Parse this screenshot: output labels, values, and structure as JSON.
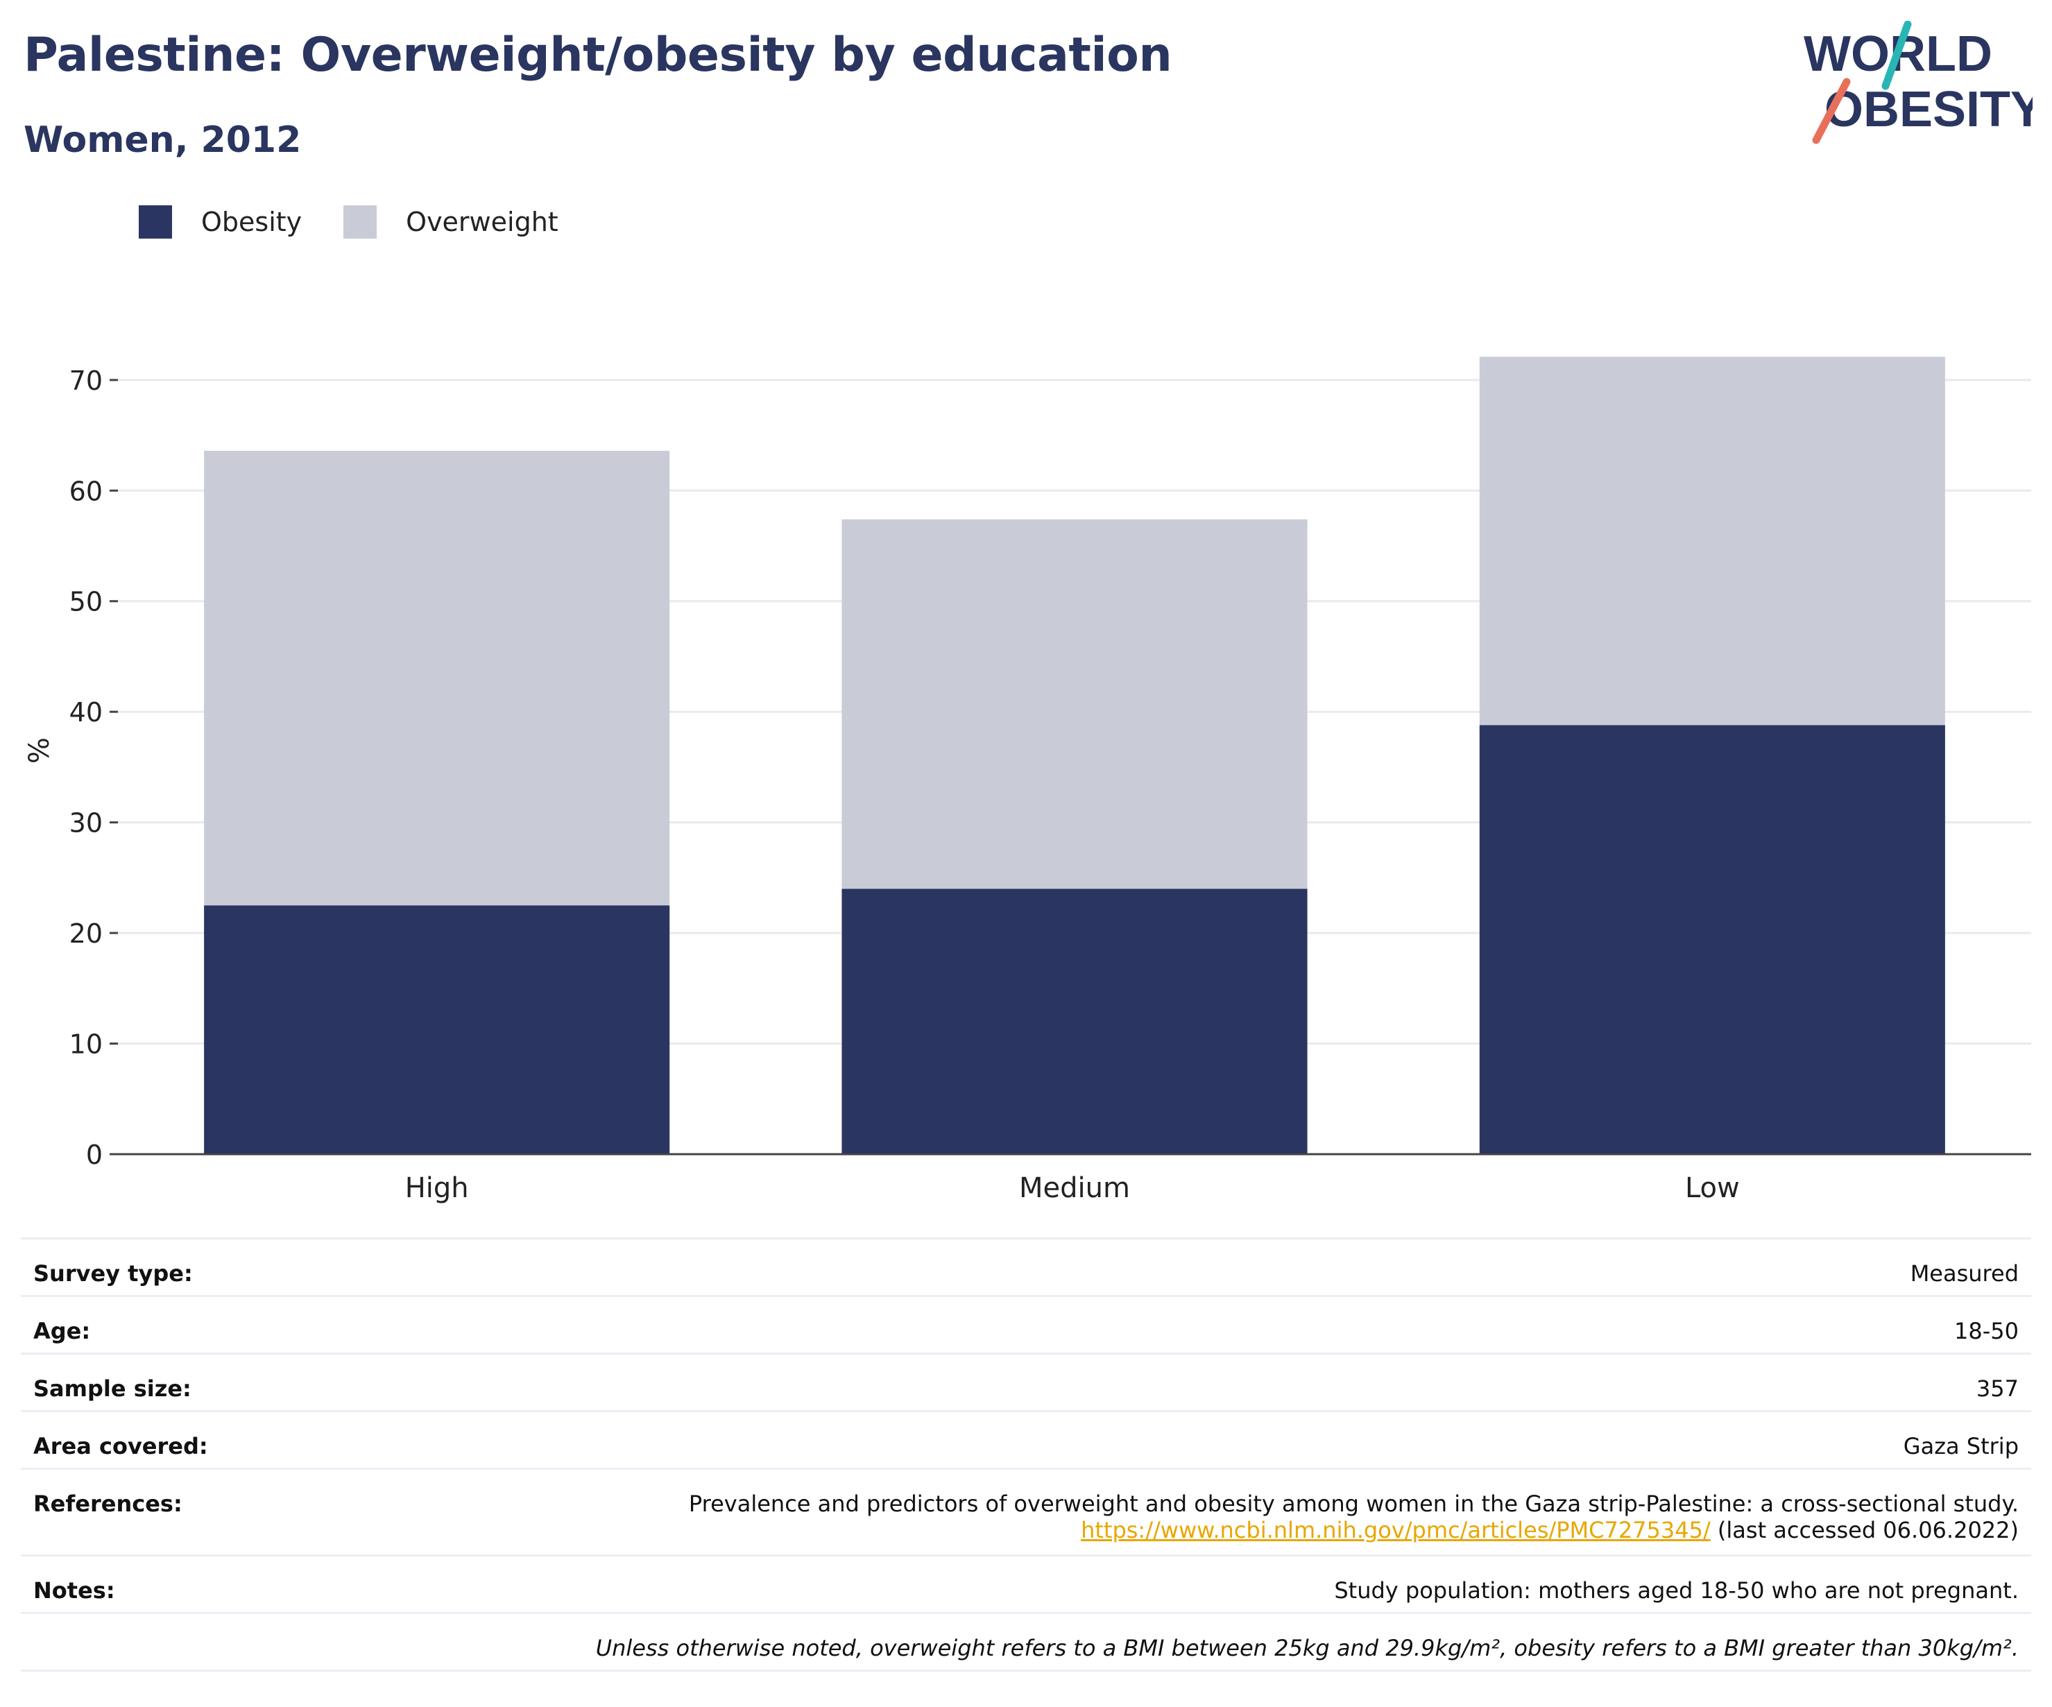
{
  "header": {
    "title": "Palestine: Overweight/obesity by education",
    "subtitle": "Women, 2012",
    "logo_line1": "WORLD",
    "logo_line2": "OBESITY"
  },
  "colors": {
    "obesity": "#2a3661",
    "overweight": "#c9ccd7",
    "title": "#2a3560",
    "logo_teal": "#2ab5b5",
    "logo_coral": "#e8705a",
    "link": "#e8a600"
  },
  "legend": [
    {
      "label": "Obesity",
      "color": "#2a3661"
    },
    {
      "label": "Overweight",
      "color": "#c9ccd7"
    }
  ],
  "chart_data": {
    "type": "bar",
    "stacked": true,
    "categories": [
      "High",
      "Medium",
      "Low"
    ],
    "series": [
      {
        "name": "Obesity",
        "values": [
          22.5,
          24.0,
          38.8
        ]
      },
      {
        "name": "Overweight",
        "values": [
          41.1,
          33.4,
          33.3
        ]
      }
    ],
    "ylabel": "%",
    "ylim": [
      0,
      73
    ],
    "yticks": [
      0,
      10,
      20,
      30,
      40,
      50,
      60,
      70
    ],
    "grid": true,
    "legend_position": "top-left"
  },
  "info": {
    "survey_type": {
      "label": "Survey type:",
      "value": "Measured"
    },
    "age": {
      "label": "Age:",
      "value": "18-50"
    },
    "sample_size": {
      "label": "Sample size:",
      "value": "357"
    },
    "area_covered": {
      "label": "Area covered:",
      "value": "Gaza Strip"
    },
    "references": {
      "label": "References:",
      "line1": "Prevalence and predictors of overweight and obesity among women in the Gaza strip-Palestine: a cross-sectional study.",
      "link": "https://www.ncbi.nlm.nih.gov/pmc/articles/PMC7275345/",
      "accessed": " (last accessed 06.06.2022)"
    },
    "notes": {
      "label": "Notes:",
      "value": "Study population: mothers aged 18-50 who are not pregnant."
    },
    "footnote": "Unless otherwise noted, overweight refers to a BMI between 25kg and 29.9kg/m², obesity refers to a BMI greater than 30kg/m²."
  }
}
